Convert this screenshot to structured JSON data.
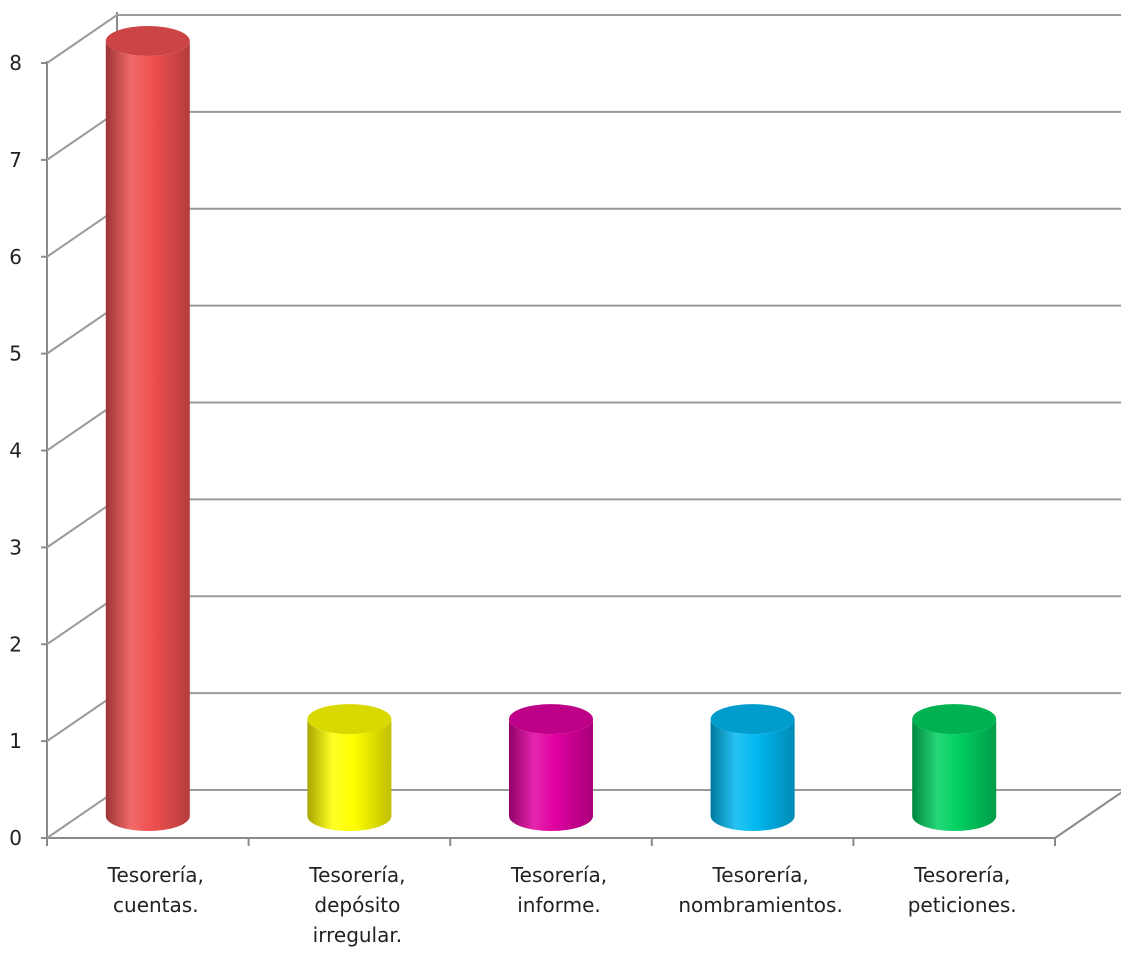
{
  "chart_data": {
    "type": "bar",
    "style": "3d-cylinder",
    "categories": [
      [
        "Tesorería,",
        "cuentas."
      ],
      [
        "Tesorería,",
        "depósito",
        "irregular."
      ],
      [
        "Tesorería,",
        "informe."
      ],
      [
        "Tesorería,",
        "nombramientos."
      ],
      [
        "Tesorería,",
        "peticiones."
      ]
    ],
    "values": [
      8,
      1,
      1,
      1,
      1
    ],
    "colors": [
      "#f05050",
      "#ffff00",
      "#e000a0",
      "#00b8f0",
      "#00d060"
    ],
    "ylim": [
      0,
      8
    ],
    "yticks": [
      "0",
      "1",
      "2",
      "3",
      "4",
      "5",
      "6",
      "7",
      "8"
    ],
    "grid": true,
    "legend": "none"
  }
}
